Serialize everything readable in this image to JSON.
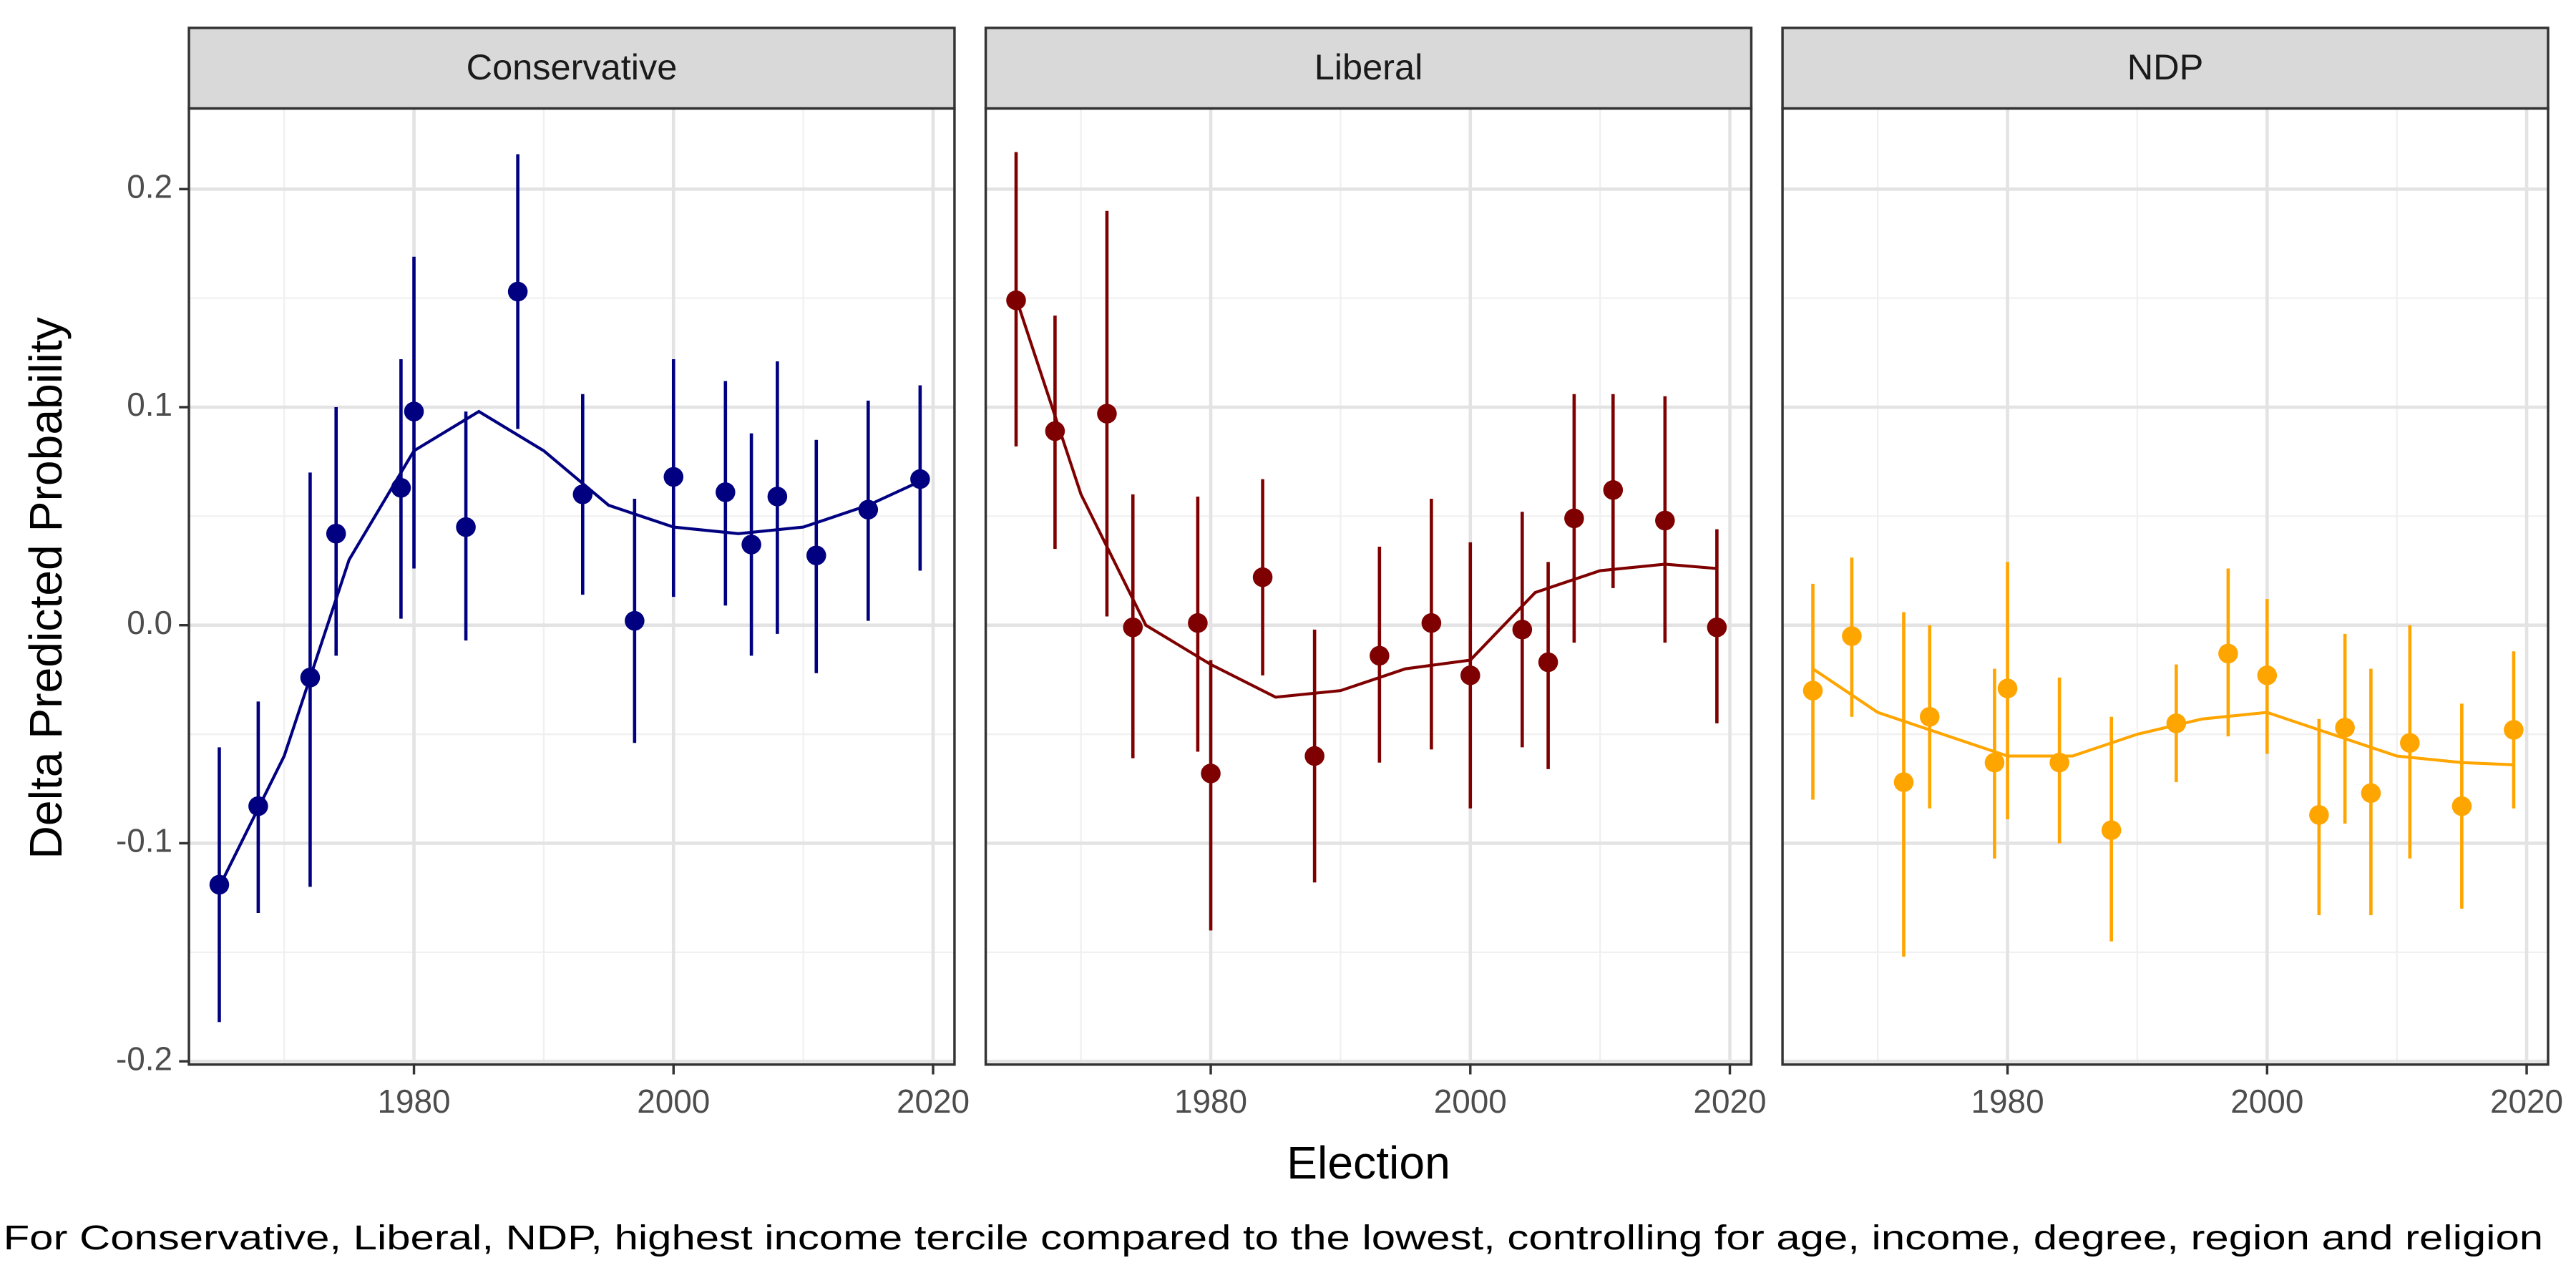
{
  "xlabel": "Election",
  "ylabel": "Delta Predicted Probability",
  "caption": "For Conservative, Liberal, NDP, highest income tercile compared to the lowest, controlling for age, income, degree, region and religion",
  "chart_data": [
    {
      "type": "scatter",
      "title": "Conservative",
      "color": "#000080",
      "x": [
        1965,
        1968,
        1972,
        1974,
        1979,
        1980,
        1984,
        1988,
        1993,
        1997,
        2000,
        2004,
        2006,
        2008,
        2011,
        2015,
        2019
      ],
      "values": [
        -0.119,
        -0.083,
        -0.024,
        0.042,
        0.063,
        0.098,
        0.045,
        0.153,
        0.06,
        0.002,
        0.068,
        0.061,
        0.037,
        0.059,
        0.032,
        0.053,
        0.067
      ],
      "lower": [
        -0.182,
        -0.132,
        -0.12,
        -0.014,
        0.003,
        0.026,
        -0.007,
        0.09,
        0.014,
        -0.054,
        0.013,
        0.009,
        -0.014,
        -0.004,
        -0.022,
        0.002,
        0.025
      ],
      "upper": [
        -0.056,
        -0.035,
        0.07,
        0.1,
        0.122,
        0.169,
        0.098,
        0.216,
        0.106,
        0.058,
        0.122,
        0.112,
        0.088,
        0.121,
        0.085,
        0.103,
        0.11
      ],
      "smooth_x": [
        1965,
        1970,
        1975,
        1980,
        1985,
        1990,
        1995,
        2000,
        2005,
        2010,
        2015,
        2019
      ],
      "smooth_y": [
        -0.12,
        -0.06,
        0.03,
        0.08,
        0.098,
        0.08,
        0.055,
        0.045,
        0.042,
        0.045,
        0.055,
        0.066
      ],
      "xlim": [
        1962.66,
        2021.65
      ],
      "ylim": [
        -0.2015,
        0.237
      ],
      "xticks": [
        1980,
        2000,
        2020
      ],
      "yticks": [
        -0.2,
        -0.1,
        {
          "value": 0,
          "label": "0.0"
        },
        0.1,
        0.2
      ],
      "xminor": [
        1970,
        1990,
        2010
      ],
      "yminor": [
        -0.15,
        -0.05,
        0.05,
        0.15
      ],
      "grid": true
    },
    {
      "type": "scatter",
      "title": "Liberal",
      "color": "#7f0000",
      "x": [
        1965,
        1968,
        1972,
        1974,
        1979,
        1980,
        1984,
        1988,
        1993,
        1997,
        2000,
        2004,
        2006,
        2008,
        2011,
        2015,
        2019
      ],
      "values": [
        0.149,
        0.089,
        0.097,
        -0.001,
        0.001,
        -0.068,
        0.022,
        -0.06,
        -0.014,
        0.001,
        -0.023,
        -0.002,
        -0.017,
        0.049,
        0.062,
        0.048,
        -0.001
      ],
      "lower": [
        0.082,
        0.035,
        0.004,
        -0.061,
        -0.058,
        -0.14,
        -0.023,
        -0.118,
        -0.063,
        -0.057,
        -0.084,
        -0.056,
        -0.066,
        -0.008,
        0.017,
        -0.008,
        -0.045
      ],
      "upper": [
        0.217,
        0.142,
        0.19,
        0.06,
        0.059,
        -0.016,
        0.067,
        -0.002,
        0.036,
        0.058,
        0.038,
        0.052,
        0.029,
        0.106,
        0.106,
        0.105,
        0.044
      ],
      "smooth_x": [
        1965,
        1970,
        1975,
        1980,
        1985,
        1990,
        1995,
        2000,
        2005,
        2010,
        2015,
        2019
      ],
      "smooth_y": [
        0.15,
        0.06,
        0.0,
        -0.018,
        -0.033,
        -0.03,
        -0.02,
        -0.016,
        0.015,
        0.025,
        0.028,
        0.026
      ],
      "xlim": [
        1962.66,
        2021.65
      ],
      "ylim": [
        -0.2015,
        0.237
      ],
      "xticks": [
        1980,
        2000,
        2020
      ],
      "yticks": [
        -0.2,
        -0.1,
        {
          "value": 0,
          "label": "0.0"
        },
        0.1,
        0.2
      ],
      "xminor": [
        1970,
        1990,
        2010
      ],
      "yminor": [
        -0.15,
        -0.05,
        0.05,
        0.15
      ],
      "grid": true
    },
    {
      "type": "scatter",
      "title": "NDP",
      "color": "#ffa500",
      "x": [
        1965,
        1968,
        1972,
        1974,
        1979,
        1980,
        1984,
        1988,
        1993,
        1997,
        2000,
        2004,
        2006,
        2008,
        2011,
        2015,
        2019
      ],
      "values": [
        -0.03,
        -0.005,
        -0.072,
        -0.042,
        -0.063,
        -0.029,
        -0.063,
        -0.094,
        -0.045,
        -0.013,
        -0.023,
        -0.087,
        -0.047,
        -0.077,
        -0.054,
        -0.083,
        -0.048
      ],
      "lower": [
        -0.08,
        -0.042,
        -0.152,
        -0.084,
        -0.107,
        -0.089,
        -0.1,
        -0.145,
        -0.072,
        -0.051,
        -0.059,
        -0.133,
        -0.091,
        -0.133,
        -0.107,
        -0.13,
        -0.084
      ],
      "upper": [
        0.019,
        0.031,
        0.006,
        0.0,
        -0.02,
        0.029,
        -0.024,
        -0.042,
        -0.018,
        0.026,
        0.012,
        -0.043,
        -0.004,
        -0.02,
        0.0,
        -0.036,
        -0.012
      ],
      "smooth_x": [
        1965,
        1970,
        1975,
        1980,
        1985,
        1990,
        1995,
        2000,
        2005,
        2010,
        2015,
        2019
      ],
      "smooth_y": [
        -0.02,
        -0.04,
        -0.05,
        -0.06,
        -0.06,
        -0.05,
        -0.043,
        -0.04,
        -0.05,
        -0.06,
        -0.063,
        -0.064
      ],
      "xlim": [
        1962.66,
        2021.65
      ],
      "ylim": [
        -0.2015,
        0.237
      ],
      "xticks": [
        1980,
        2000,
        2020
      ],
      "yticks": [
        -0.2,
        -0.1,
        {
          "value": 0,
          "label": "0.0"
        },
        0.1,
        0.2
      ],
      "xminor": [
        1970,
        1990,
        2010
      ],
      "yminor": [
        -0.15,
        -0.05,
        0.05,
        0.15
      ],
      "grid": true
    }
  ]
}
